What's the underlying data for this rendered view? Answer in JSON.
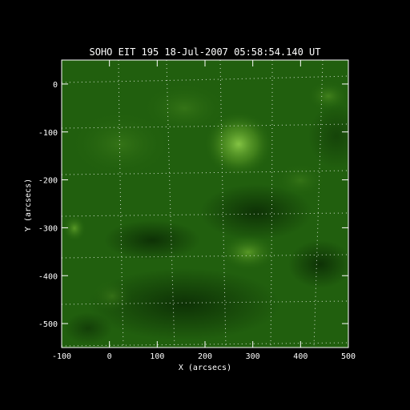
{
  "title": "SOHO EIT 195 18-Jul-2007 05:58:54.140 UT",
  "xlabel": "X (arcsecs)",
  "ylabel": "Y (arcsecs)",
  "x_ticks": [
    "-100",
    "0",
    "100",
    "200",
    "300",
    "400",
    "500"
  ],
  "y_ticks": [
    "0",
    "-100",
    "-200",
    "-300",
    "-400",
    "-500"
  ],
  "x_range": [
    -100,
    500
  ],
  "y_range": [
    -550,
    50
  ],
  "colors": {
    "background": "#000000",
    "image_base": "#1f5c0c",
    "bright_region": "#7fbf3a",
    "grid": "#ffffff",
    "text": "#ffffff"
  }
}
